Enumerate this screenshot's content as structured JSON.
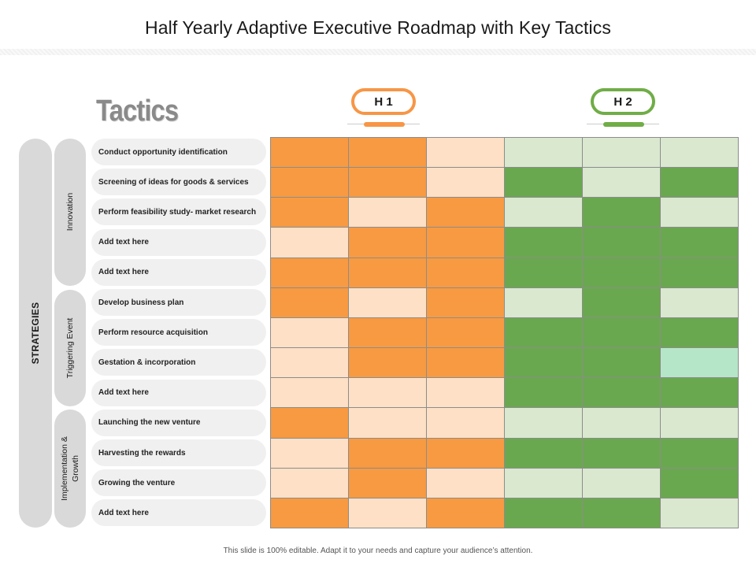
{
  "title": "Half Yearly Adaptive Executive Roadmap with Key Tactics",
  "tactics_heading": "Tactics",
  "periods": [
    {
      "label": "H 1",
      "color": "#f79646"
    },
    {
      "label": "H 2",
      "color": "#70ad47"
    }
  ],
  "strategies_label": "STRATEGIES",
  "groups": [
    {
      "label": "Innovation"
    },
    {
      "label": "Triggering Event"
    },
    {
      "label": "Implementation & Growth"
    }
  ],
  "rows": [
    "Conduct opportunity identification",
    "Screening of ideas for goods & services",
    "Perform feasibility study- market research",
    "Add text here",
    "Add text here",
    "Develop business plan",
    "Perform resource acquisition",
    "Gestation & incorporation",
    "Add text here",
    "Launching the new venture",
    "Harvesting the rewards",
    "Growing the venture",
    "Add text here"
  ],
  "palette": {
    "orange_strong": "#f79a42",
    "orange_light": "#fde0c5",
    "green_strong": "#6aa84f",
    "green_light": "#d9e8cf",
    "mint": "#b6e6c8"
  },
  "cell_matrix": [
    [
      "O",
      "O",
      "o",
      "g",
      "g",
      "g"
    ],
    [
      "O",
      "O",
      "o",
      "G",
      "g",
      "G"
    ],
    [
      "O",
      "o",
      "O",
      "g",
      "G",
      "g"
    ],
    [
      "o",
      "O",
      "O",
      "G",
      "G",
      "G"
    ],
    [
      "O",
      "O",
      "O",
      "G",
      "G",
      "G"
    ],
    [
      "O",
      "o",
      "O",
      "g",
      "G",
      "g"
    ],
    [
      "o",
      "O",
      "O",
      "G",
      "G",
      "G"
    ],
    [
      "o",
      "O",
      "O",
      "G",
      "G",
      "m"
    ],
    [
      "o",
      "o",
      "o",
      "G",
      "G",
      "G"
    ],
    [
      "O",
      "o",
      "o",
      "g",
      "g",
      "g"
    ],
    [
      "o",
      "O",
      "O",
      "G",
      "G",
      "G"
    ],
    [
      "o",
      "O",
      "o",
      "g",
      "g",
      "G"
    ],
    [
      "O",
      "o",
      "O",
      "G",
      "G",
      "g"
    ]
  ],
  "footer": "This slide is 100% editable.  Adapt it to your needs and capture your audience’s attention."
}
